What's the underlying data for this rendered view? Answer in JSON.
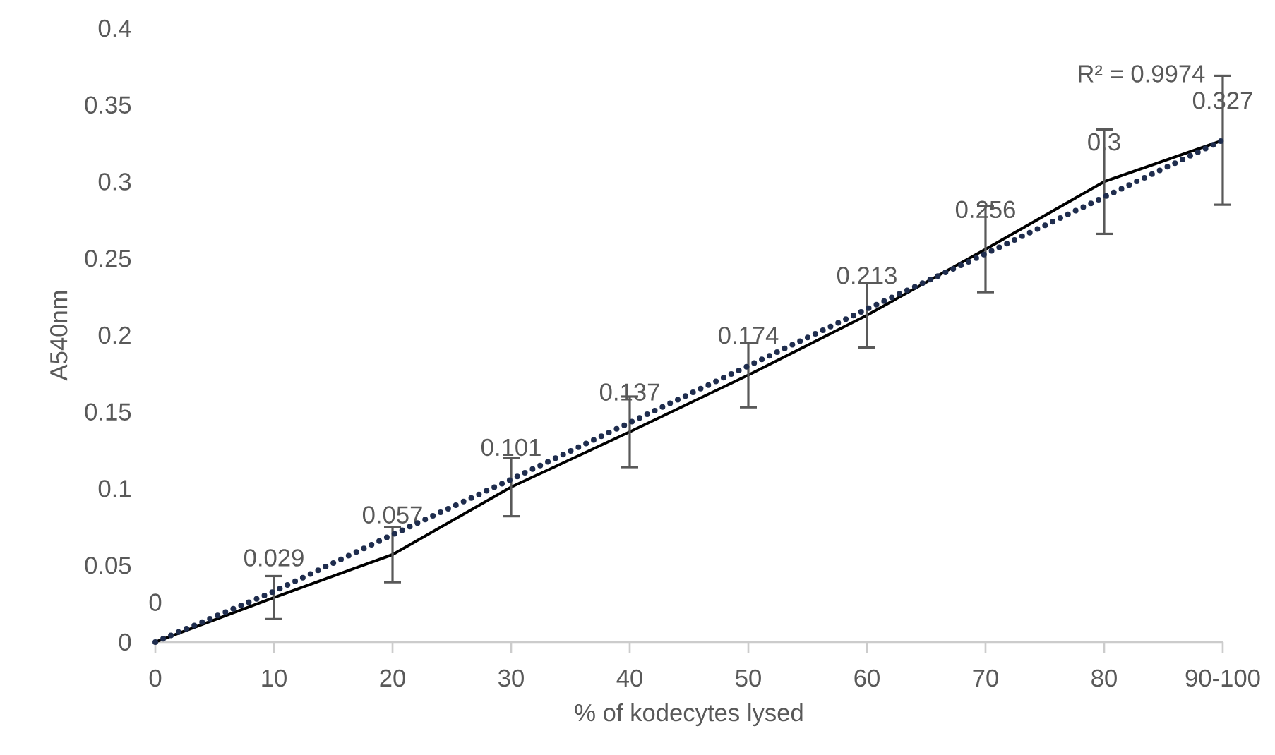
{
  "chart_data": {
    "type": "line",
    "xlabel": "% of kodecytes lysed",
    "ylabel": "A540nm",
    "categories": [
      "0",
      "10",
      "20",
      "30",
      "40",
      "50",
      "60",
      "70",
      "80",
      "90-100"
    ],
    "series": [
      {
        "color": "#000000",
        "line_style": "solid",
        "data_labels": true,
        "values": [
          0,
          0.029,
          0.057,
          0.101,
          0.137,
          0.174,
          0.213,
          0.256,
          0.3,
          0.327
        ],
        "errors": [
          null,
          0.014,
          0.018,
          0.019,
          0.023,
          0.021,
          0.021,
          0.028,
          0.034,
          0.042
        ]
      },
      {
        "type": "line",
        "color": "#1f2d4e",
        "line_style": "dotted",
        "values": [
          0,
          0.033,
          0.07,
          0.106,
          0.143,
          0.18,
          0.217,
          0.253,
          0.29,
          0.327
        ]
      }
    ],
    "ylim": [
      0,
      0.4
    ],
    "yticks": [
      0,
      0.05,
      0.1,
      0.15,
      0.2,
      0.25,
      0.3,
      0.35,
      0.4
    ],
    "marker": "none",
    "grid": false,
    "annotations": [
      "R² = 0.9974"
    ]
  }
}
